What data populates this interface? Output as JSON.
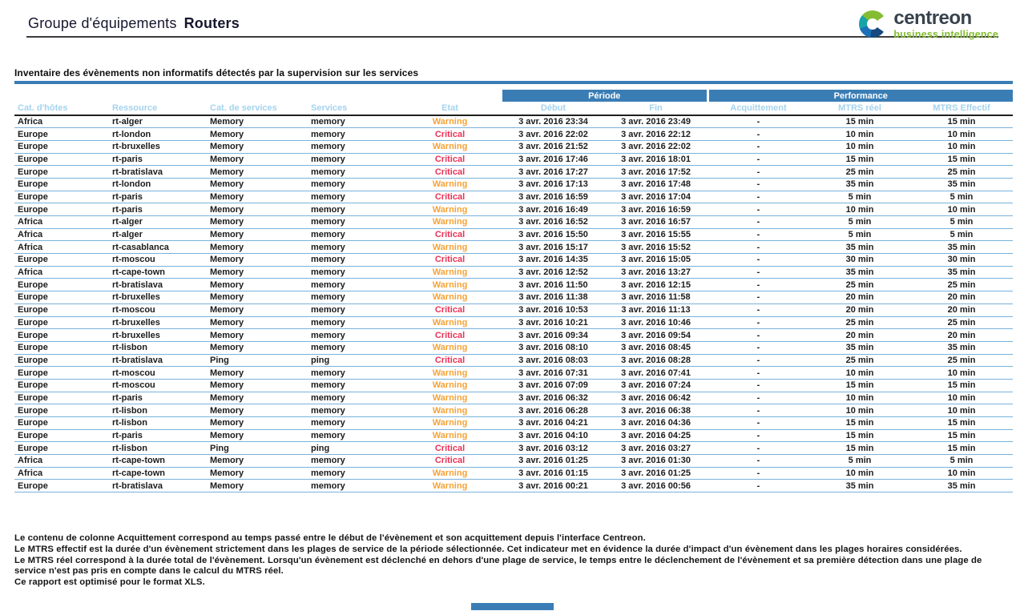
{
  "header": {
    "title_regular": "Groupe d'équipements",
    "title_bold": "Routers",
    "logo_brand": "centreon",
    "logo_tagline": "business intelligence"
  },
  "section_heading": "Inventaire des évènements non informatifs détectés par la supervision sur les services",
  "table": {
    "group_headers": {
      "periode": "Période",
      "performance": "Performance"
    },
    "columns": [
      "Cat. d'hôtes",
      "Ressource",
      "Cat. de services",
      "Services",
      "Etat",
      "Début",
      "Fin",
      "Acquittement",
      "MTRS réel",
      "MTRS Effectif"
    ],
    "rows": [
      [
        "Africa",
        "rt-alger",
        "Memory",
        "memory",
        "Warning",
        "3 avr. 2016 23:34",
        "3 avr. 2016 23:49",
        "-",
        "15 min",
        "15 min"
      ],
      [
        "Europe",
        "rt-london",
        "Memory",
        "memory",
        "Critical",
        "3 avr. 2016 22:02",
        "3 avr. 2016 22:12",
        "-",
        "10 min",
        "10 min"
      ],
      [
        "Europe",
        "rt-bruxelles",
        "Memory",
        "memory",
        "Warning",
        "3 avr. 2016 21:52",
        "3 avr. 2016 22:02",
        "-",
        "10 min",
        "10 min"
      ],
      [
        "Europe",
        "rt-paris",
        "Memory",
        "memory",
        "Critical",
        "3 avr. 2016 17:46",
        "3 avr. 2016 18:01",
        "-",
        "15 min",
        "15 min"
      ],
      [
        "Europe",
        "rt-bratislava",
        "Memory",
        "memory",
        "Critical",
        "3 avr. 2016 17:27",
        "3 avr. 2016 17:52",
        "-",
        "25 min",
        "25 min"
      ],
      [
        "Europe",
        "rt-london",
        "Memory",
        "memory",
        "Warning",
        "3 avr. 2016 17:13",
        "3 avr. 2016 17:48",
        "-",
        "35 min",
        "35 min"
      ],
      [
        "Europe",
        "rt-paris",
        "Memory",
        "memory",
        "Critical",
        "3 avr. 2016 16:59",
        "3 avr. 2016 17:04",
        "-",
        "5 min",
        "5 min"
      ],
      [
        "Europe",
        "rt-paris",
        "Memory",
        "memory",
        "Warning",
        "3 avr. 2016 16:49",
        "3 avr. 2016 16:59",
        "-",
        "10 min",
        "10 min"
      ],
      [
        "Africa",
        "rt-alger",
        "Memory",
        "memory",
        "Warning",
        "3 avr. 2016 16:52",
        "3 avr. 2016 16:57",
        "-",
        "5 min",
        "5 min"
      ],
      [
        "Africa",
        "rt-alger",
        "Memory",
        "memory",
        "Critical",
        "3 avr. 2016 15:50",
        "3 avr. 2016 15:55",
        "-",
        "5 min",
        "5 min"
      ],
      [
        "Africa",
        "rt-casablanca",
        "Memory",
        "memory",
        "Warning",
        "3 avr. 2016 15:17",
        "3 avr. 2016 15:52",
        "-",
        "35 min",
        "35 min"
      ],
      [
        "Europe",
        "rt-moscou",
        "Memory",
        "memory",
        "Critical",
        "3 avr. 2016 14:35",
        "3 avr. 2016 15:05",
        "-",
        "30 min",
        "30 min"
      ],
      [
        "Africa",
        "rt-cape-town",
        "Memory",
        "memory",
        "Warning",
        "3 avr. 2016 12:52",
        "3 avr. 2016 13:27",
        "-",
        "35 min",
        "35 min"
      ],
      [
        "Europe",
        "rt-bratislava",
        "Memory",
        "memory",
        "Warning",
        "3 avr. 2016 11:50",
        "3 avr. 2016 12:15",
        "-",
        "25 min",
        "25 min"
      ],
      [
        "Europe",
        "rt-bruxelles",
        "Memory",
        "memory",
        "Warning",
        "3 avr. 2016 11:38",
        "3 avr. 2016 11:58",
        "-",
        "20 min",
        "20 min"
      ],
      [
        "Europe",
        "rt-moscou",
        "Memory",
        "memory",
        "Critical",
        "3 avr. 2016 10:53",
        "3 avr. 2016 11:13",
        "-",
        "20 min",
        "20 min"
      ],
      [
        "Europe",
        "rt-bruxelles",
        "Memory",
        "memory",
        "Warning",
        "3 avr. 2016 10:21",
        "3 avr. 2016 10:46",
        "-",
        "25 min",
        "25 min"
      ],
      [
        "Europe",
        "rt-bruxelles",
        "Memory",
        "memory",
        "Critical",
        "3 avr. 2016 09:34",
        "3 avr. 2016 09:54",
        "-",
        "20 min",
        "20 min"
      ],
      [
        "Europe",
        "rt-lisbon",
        "Memory",
        "memory",
        "Warning",
        "3 avr. 2016 08:10",
        "3 avr. 2016 08:45",
        "-",
        "35 min",
        "35 min"
      ],
      [
        "Europe",
        "rt-bratislava",
        "Ping",
        "ping",
        "Critical",
        "3 avr. 2016 08:03",
        "3 avr. 2016 08:28",
        "-",
        "25 min",
        "25 min"
      ],
      [
        "Europe",
        "rt-moscou",
        "Memory",
        "memory",
        "Warning",
        "3 avr. 2016 07:31",
        "3 avr. 2016 07:41",
        "-",
        "10 min",
        "10 min"
      ],
      [
        "Europe",
        "rt-moscou",
        "Memory",
        "memory",
        "Warning",
        "3 avr. 2016 07:09",
        "3 avr. 2016 07:24",
        "-",
        "15 min",
        "15 min"
      ],
      [
        "Europe",
        "rt-paris",
        "Memory",
        "memory",
        "Warning",
        "3 avr. 2016 06:32",
        "3 avr. 2016 06:42",
        "-",
        "10 min",
        "10 min"
      ],
      [
        "Europe",
        "rt-lisbon",
        "Memory",
        "memory",
        "Warning",
        "3 avr. 2016 06:28",
        "3 avr. 2016 06:38",
        "-",
        "10 min",
        "10 min"
      ],
      [
        "Europe",
        "rt-lisbon",
        "Memory",
        "memory",
        "Warning",
        "3 avr. 2016 04:21",
        "3 avr. 2016 04:36",
        "-",
        "15 min",
        "15 min"
      ],
      [
        "Europe",
        "rt-paris",
        "Memory",
        "memory",
        "Warning",
        "3 avr. 2016 04:10",
        "3 avr. 2016 04:25",
        "-",
        "15 min",
        "15 min"
      ],
      [
        "Europe",
        "rt-lisbon",
        "Ping",
        "ping",
        "Critical",
        "3 avr. 2016 03:12",
        "3 avr. 2016 03:27",
        "-",
        "15 min",
        "15 min"
      ],
      [
        "Africa",
        "rt-cape-town",
        "Memory",
        "memory",
        "Critical",
        "3 avr. 2016 01:25",
        "3 avr. 2016 01:30",
        "-",
        "5 min",
        "5 min"
      ],
      [
        "Africa",
        "rt-cape-town",
        "Memory",
        "memory",
        "Warning",
        "3 avr. 2016 01:15",
        "3 avr. 2016 01:25",
        "-",
        "10 min",
        "10 min"
      ],
      [
        "Europe",
        "rt-bratislava",
        "Memory",
        "memory",
        "Warning",
        "3 avr. 2016 00:21",
        "3 avr. 2016 00:56",
        "-",
        "35 min",
        "35 min"
      ]
    ]
  },
  "footnotes": {
    "lines": [
      "Le contenu de colonne Acquittement correspond au temps passé entre le début de l'évènement et son acquittement depuis l'interface Centreon.",
      "Le MTRS effectif est la durée d'un évènement strictement dans les plages de service de la période sélectionnée. Cet indicateur met en évidence la durée d'impact d'un évènement dans les plages horaires considérées.",
      "Le MTRS réel correspond à la durée total de l'évènement. Lorsqu'un évènement est déclenché en dehors d'une plage de service, le temps entre le déclenchement de l'évènement et sa première détection dans une plage de",
      "service n'est pas pris en compte dans le calcul du MTRS réel.",
      "Ce rapport est optimisé pour le format XLS."
    ]
  },
  "colors": {
    "accent": "#3A7DB5",
    "subheader_text": "#A5D3EE",
    "warning": "#F7A234",
    "critical": "#EC3255",
    "row_line": "#79B2DC",
    "brand_dark": "#37424D",
    "logo_green": "#84BD32",
    "logo_teal": "#17A3A8",
    "logo_blue": "#1D71B8",
    "logo_navy": "#16497E"
  }
}
